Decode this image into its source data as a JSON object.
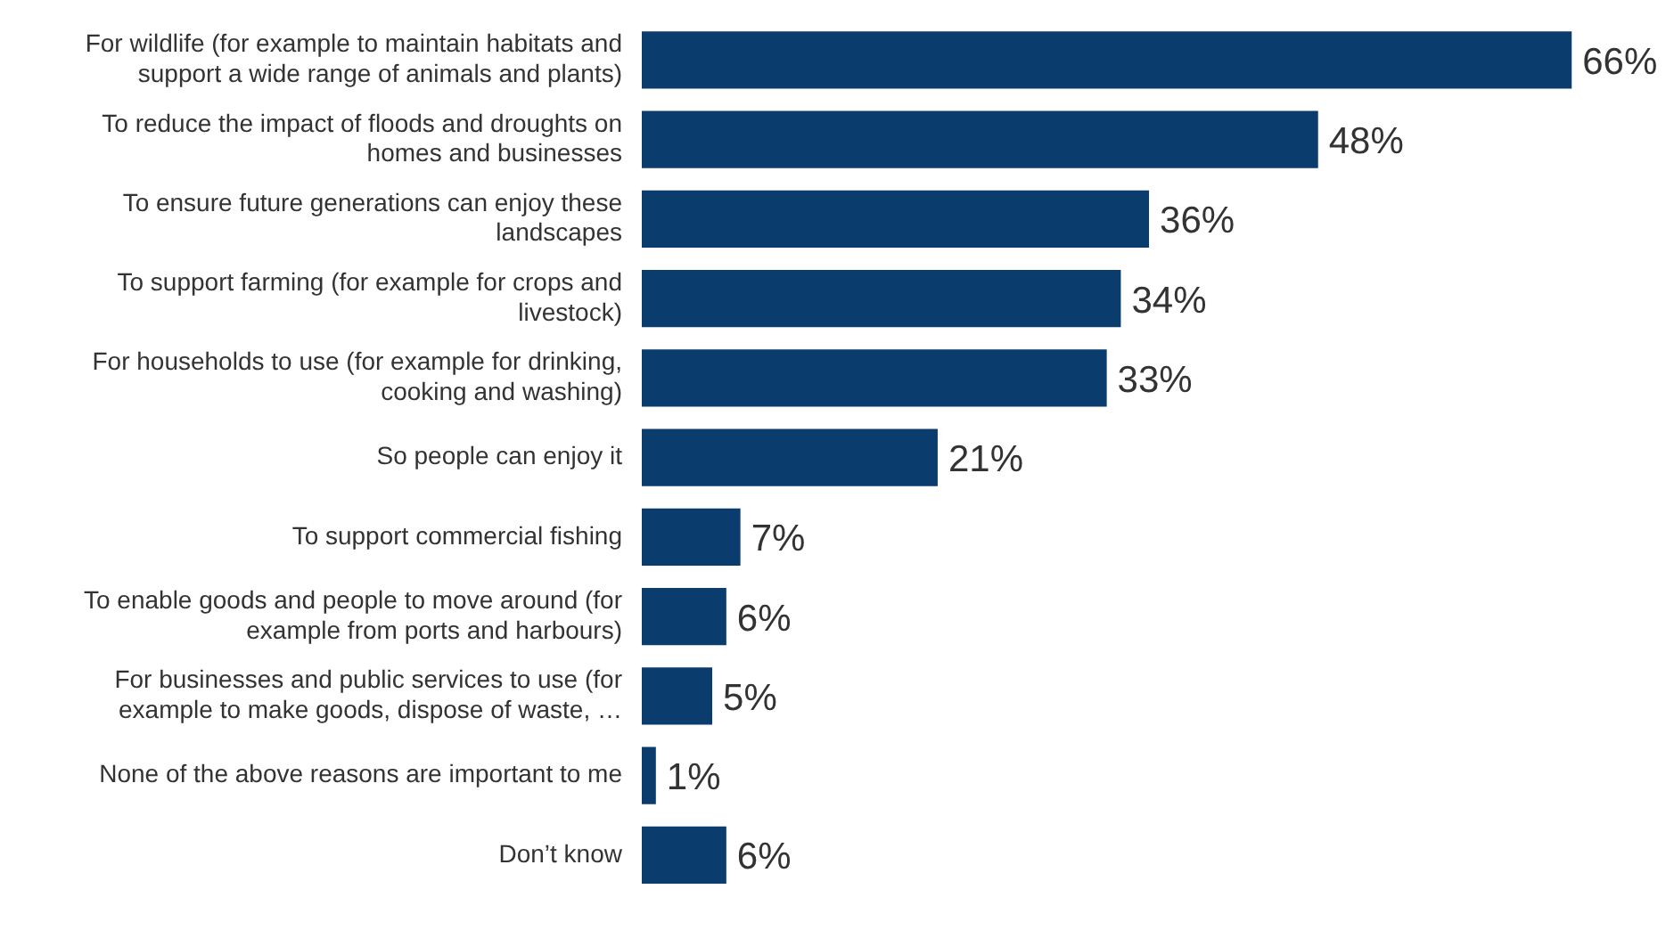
{
  "chart_data": {
    "type": "bar",
    "orientation": "horizontal",
    "categories": [
      "For wildlife (for example to maintain habitats and support a wide range of animals and plants)",
      "To reduce the impact of floods and droughts on homes and businesses",
      "To ensure future generations can enjoy these landscapes",
      "To support farming (for example for crops and livestock)",
      "For households to use (for example for drinking, cooking and washing)",
      "So people can enjoy it",
      "To support commercial fishing",
      "To enable goods and people to move around (for example from ports and harbours)",
      "For businesses and public services to use (for example to make goods, dispose of waste, …",
      "None of the above reasons are important to me",
      "Don’t know"
    ],
    "values": [
      66,
      48,
      36,
      34,
      33,
      21,
      7,
      6,
      5,
      1,
      6
    ],
    "value_labels": [
      "66%",
      "48%",
      "36%",
      "34%",
      "33%",
      "21%",
      "7%",
      "6%",
      "5%",
      "1%",
      "6%"
    ],
    "color": "#0b3c6e"
  }
}
